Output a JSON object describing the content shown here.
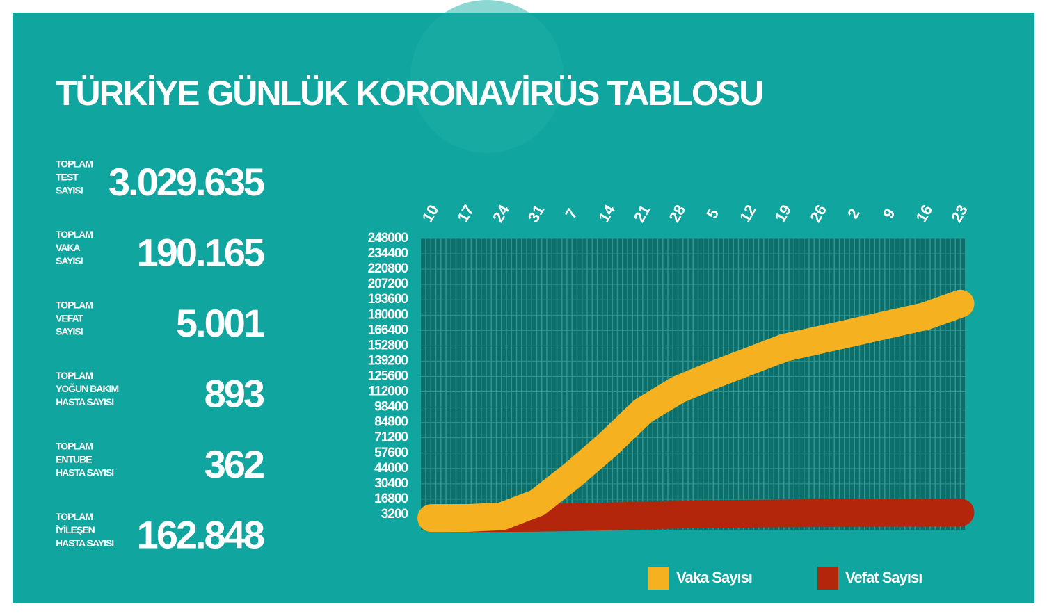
{
  "header": {
    "title": "TÜRKİYE GÜNLÜK KORONAVİRÜS TABLOSU"
  },
  "stats": [
    {
      "label": [
        "TOPLAM",
        "TEST",
        "SAYISI"
      ],
      "value": "3.029.635"
    },
    {
      "label": [
        "TOPLAM",
        "VAKA",
        "SAYISI"
      ],
      "value": "190.165"
    },
    {
      "label": [
        "TOPLAM",
        "VEFAT",
        "SAYISI"
      ],
      "value": "5.001"
    },
    {
      "label": [
        "TOPLAM",
        "YOĞUN BAKIM",
        "HASTA SAYISI"
      ],
      "value": "893"
    },
    {
      "label": [
        "TOPLAM",
        "ENTUBE",
        "HASTA SAYISI"
      ],
      "value": "362"
    },
    {
      "label": [
        "TOPLAM",
        "İYİLEŞEN",
        "HASTA SAYISI"
      ],
      "value": "162.848"
    }
  ],
  "chart_data": {
    "type": "line",
    "categories": [
      "10",
      "17",
      "24",
      "31",
      "7",
      "14",
      "21",
      "28",
      "5",
      "12",
      "19",
      "26",
      "2",
      "9",
      "16",
      "23"
    ],
    "series": [
      {
        "name": "Vaka Sayısı",
        "color": "#f5b120",
        "values": [
          0,
          50,
          1500,
          13500,
          38000,
          65000,
          95000,
          114000,
          127000,
          139000,
          151000,
          158000,
          165000,
          172000,
          179000,
          190165
        ]
      },
      {
        "name": "Vefat Sayısı",
        "color": "#b3260c",
        "values": [
          0,
          1,
          37,
          214,
          725,
          1403,
          2259,
          2992,
          3461,
          3841,
          4171,
          4397,
          4585,
          4729,
          4861,
          5001
        ]
      }
    ],
    "ylim": [
      -10400,
      248000
    ],
    "yticks": [
      3200,
      16800,
      30400,
      44000,
      57600,
      71200,
      84800,
      98400,
      112000,
      125600,
      139200,
      152800,
      166400,
      180000,
      193600,
      207200,
      220800,
      234400,
      248000
    ],
    "grid": true,
    "legend": "bottom-right"
  }
}
